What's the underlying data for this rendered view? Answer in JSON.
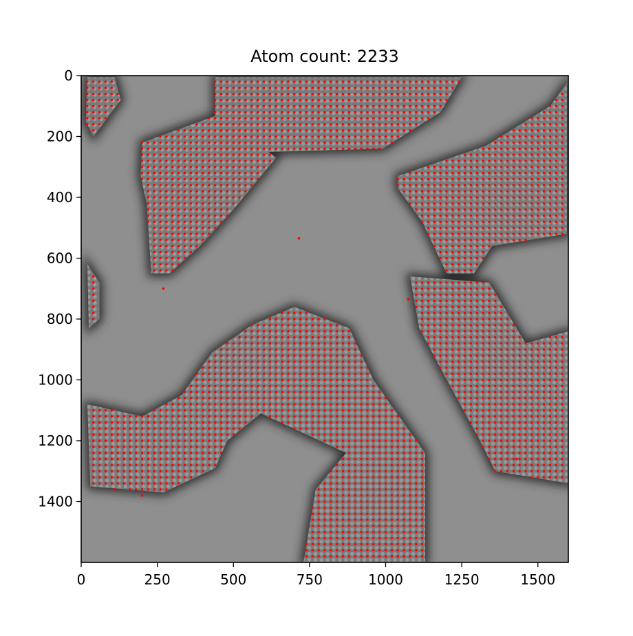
{
  "chart_data": {
    "type": "scatter",
    "title": "Atom count: 2233",
    "xlabel": "",
    "ylabel": "",
    "xlim": [
      0,
      1600
    ],
    "ylim": [
      1600,
      0
    ],
    "y_inverted": true,
    "grid": false,
    "legend": "none",
    "xticks": [
      0,
      250,
      500,
      750,
      1000,
      1250,
      1500
    ],
    "xtick_labels": [
      "0",
      "250",
      "500",
      "750",
      "1000",
      "1250",
      "1500"
    ],
    "yticks": [
      0,
      200,
      400,
      600,
      800,
      1000,
      1200,
      1400
    ],
    "ytick_labels": [
      "0",
      "200",
      "400",
      "600",
      "800",
      "1000",
      "1200",
      "1400"
    ],
    "background": "grayscale microscopy image",
    "marker_color": "#ff0000",
    "series": [
      {
        "values": "detected atom positions",
        "regions": [
          {
            "shape": "lattice",
            "polygon": [
              [
                20,
                5
              ],
              [
                110,
                5
              ],
              [
                130,
                80
              ],
              [
                40,
                200
              ],
              [
                15,
                150
              ]
            ]
          },
          {
            "shape": "lattice",
            "polygon": [
              [
                200,
                220
              ],
              [
                460,
                125
              ],
              [
                640,
                270
              ],
              [
                500,
                440
              ],
              [
                390,
                560
              ],
              [
                290,
                650
              ],
              [
                230,
                650
              ],
              [
                215,
                420
              ],
              [
                195,
                330
              ]
            ]
          },
          {
            "shape": "lattice",
            "polygon": [
              [
                440,
                5
              ],
              [
                1250,
                5
              ],
              [
                1180,
                120
              ],
              [
                990,
                240
              ],
              [
                470,
                255
              ],
              [
                440,
                160
              ]
            ]
          },
          {
            "shape": "lattice",
            "polygon": [
              [
                1595,
                25
              ],
              [
                1595,
                520
              ],
              [
                1350,
                560
              ],
              [
                1290,
                650
              ],
              [
                1200,
                650
              ],
              [
                1120,
                480
              ],
              [
                1040,
                370
              ],
              [
                1040,
                330
              ],
              [
                1330,
                230
              ],
              [
                1540,
                100
              ]
            ]
          },
          {
            "shape": "lattice",
            "polygon": [
              [
                1080,
                660
              ],
              [
                1340,
                680
              ],
              [
                1460,
                880
              ],
              [
                1600,
                840
              ],
              [
                1600,
                1340
              ],
              [
                1360,
                1300
              ],
              [
                1310,
                1200
              ],
              [
                1190,
                980
              ],
              [
                1110,
                830
              ]
            ]
          },
          {
            "shape": "lattice",
            "polygon": [
              [
                700,
                760
              ],
              [
                880,
                830
              ],
              [
                960,
                1000
              ],
              [
                1030,
                1100
              ],
              [
                1130,
                1240
              ],
              [
                1130,
                1600
              ],
              [
                730,
                1600
              ],
              [
                770,
                1360
              ],
              [
                870,
                1240
              ],
              [
                590,
                1110
              ],
              [
                480,
                1200
              ],
              [
                440,
                1290
              ],
              [
                270,
                1370
              ],
              [
                30,
                1350
              ],
              [
                20,
                1080
              ],
              [
                200,
                1120
              ],
              [
                330,
                1050
              ],
              [
                430,
                910
              ],
              [
                560,
                820
              ]
            ]
          },
          {
            "shape": "lattice",
            "polygon": [
              [
                20,
                620
              ],
              [
                60,
                680
              ],
              [
                60,
                800
              ],
              [
                25,
                830
              ]
            ]
          }
        ],
        "isolated": [
          [
            715,
            535
          ],
          [
            270,
            700
          ],
          [
            820,
            1200
          ],
          [
            1075,
            735
          ],
          [
            1430,
            1260
          ],
          [
            110,
            1360
          ],
          [
            200,
            1380
          ]
        ]
      }
    ]
  }
}
